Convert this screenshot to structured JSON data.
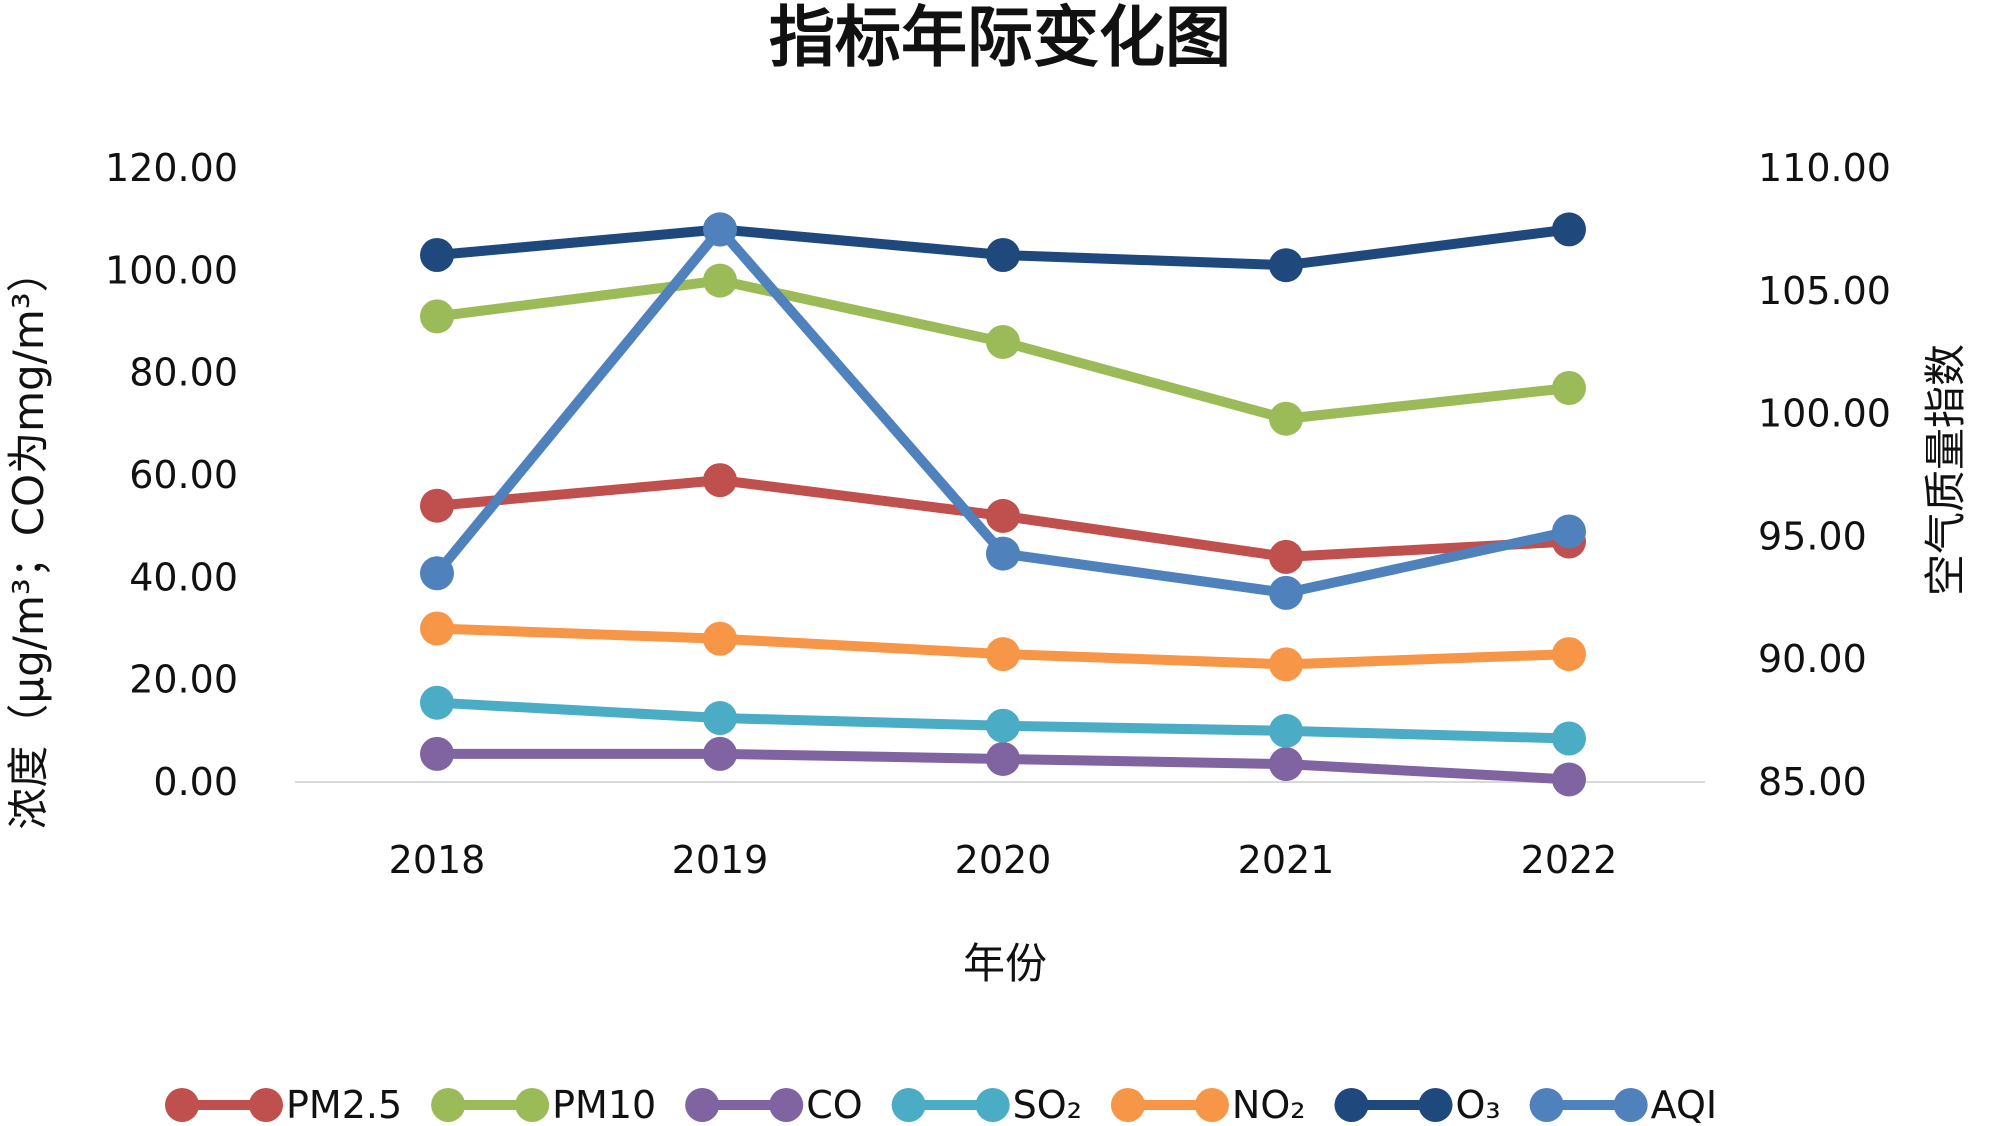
{
  "chart_data": {
    "type": "line",
    "title": "指标年际变化图",
    "xlabel": "年份",
    "ylabel": "浓度（μg/m³；CO为mg/m³）",
    "y2label": "空气质量指数",
    "categories": [
      "2018",
      "2019",
      "2020",
      "2021",
      "2022"
    ],
    "ylim": [
      0,
      120
    ],
    "y2lim": [
      85,
      110
    ],
    "yticks": [
      "0.00",
      "20.00",
      "40.00",
      "60.00",
      "80.00",
      "100.00",
      "120.00"
    ],
    "y2ticks": [
      "85.00",
      "90.00",
      "95.00",
      "100.00",
      "105.00",
      "110.00"
    ],
    "grid": false,
    "legend_position": "bottom",
    "series": [
      {
        "name": "PM2.5",
        "axis": "left",
        "color": "#c0504d",
        "values": [
          54,
          59,
          52,
          44,
          47
        ]
      },
      {
        "name": "PM10",
        "axis": "left",
        "color": "#9bbb59",
        "values": [
          91,
          98,
          86,
          71,
          77
        ]
      },
      {
        "name": "CO",
        "axis": "left",
        "color": "#8064a2",
        "values": [
          5.5,
          5.5,
          4.5,
          3.5,
          0.5
        ]
      },
      {
        "name": "SO₂",
        "axis": "left",
        "color": "#4bacc6",
        "values": [
          15.5,
          12.5,
          11,
          10,
          8.5
        ]
      },
      {
        "name": "NO₂",
        "axis": "left",
        "color": "#f79646",
        "values": [
          30,
          28,
          25,
          23,
          25
        ]
      },
      {
        "name": "O₃",
        "axis": "left",
        "color": "#1f497d",
        "values": [
          103,
          108,
          103,
          101,
          108
        ]
      },
      {
        "name": "AQI",
        "axis": "right",
        "color": "#4f81bd",
        "values": [
          93.5,
          107.5,
          94.3,
          92.7,
          95.2
        ]
      }
    ]
  }
}
